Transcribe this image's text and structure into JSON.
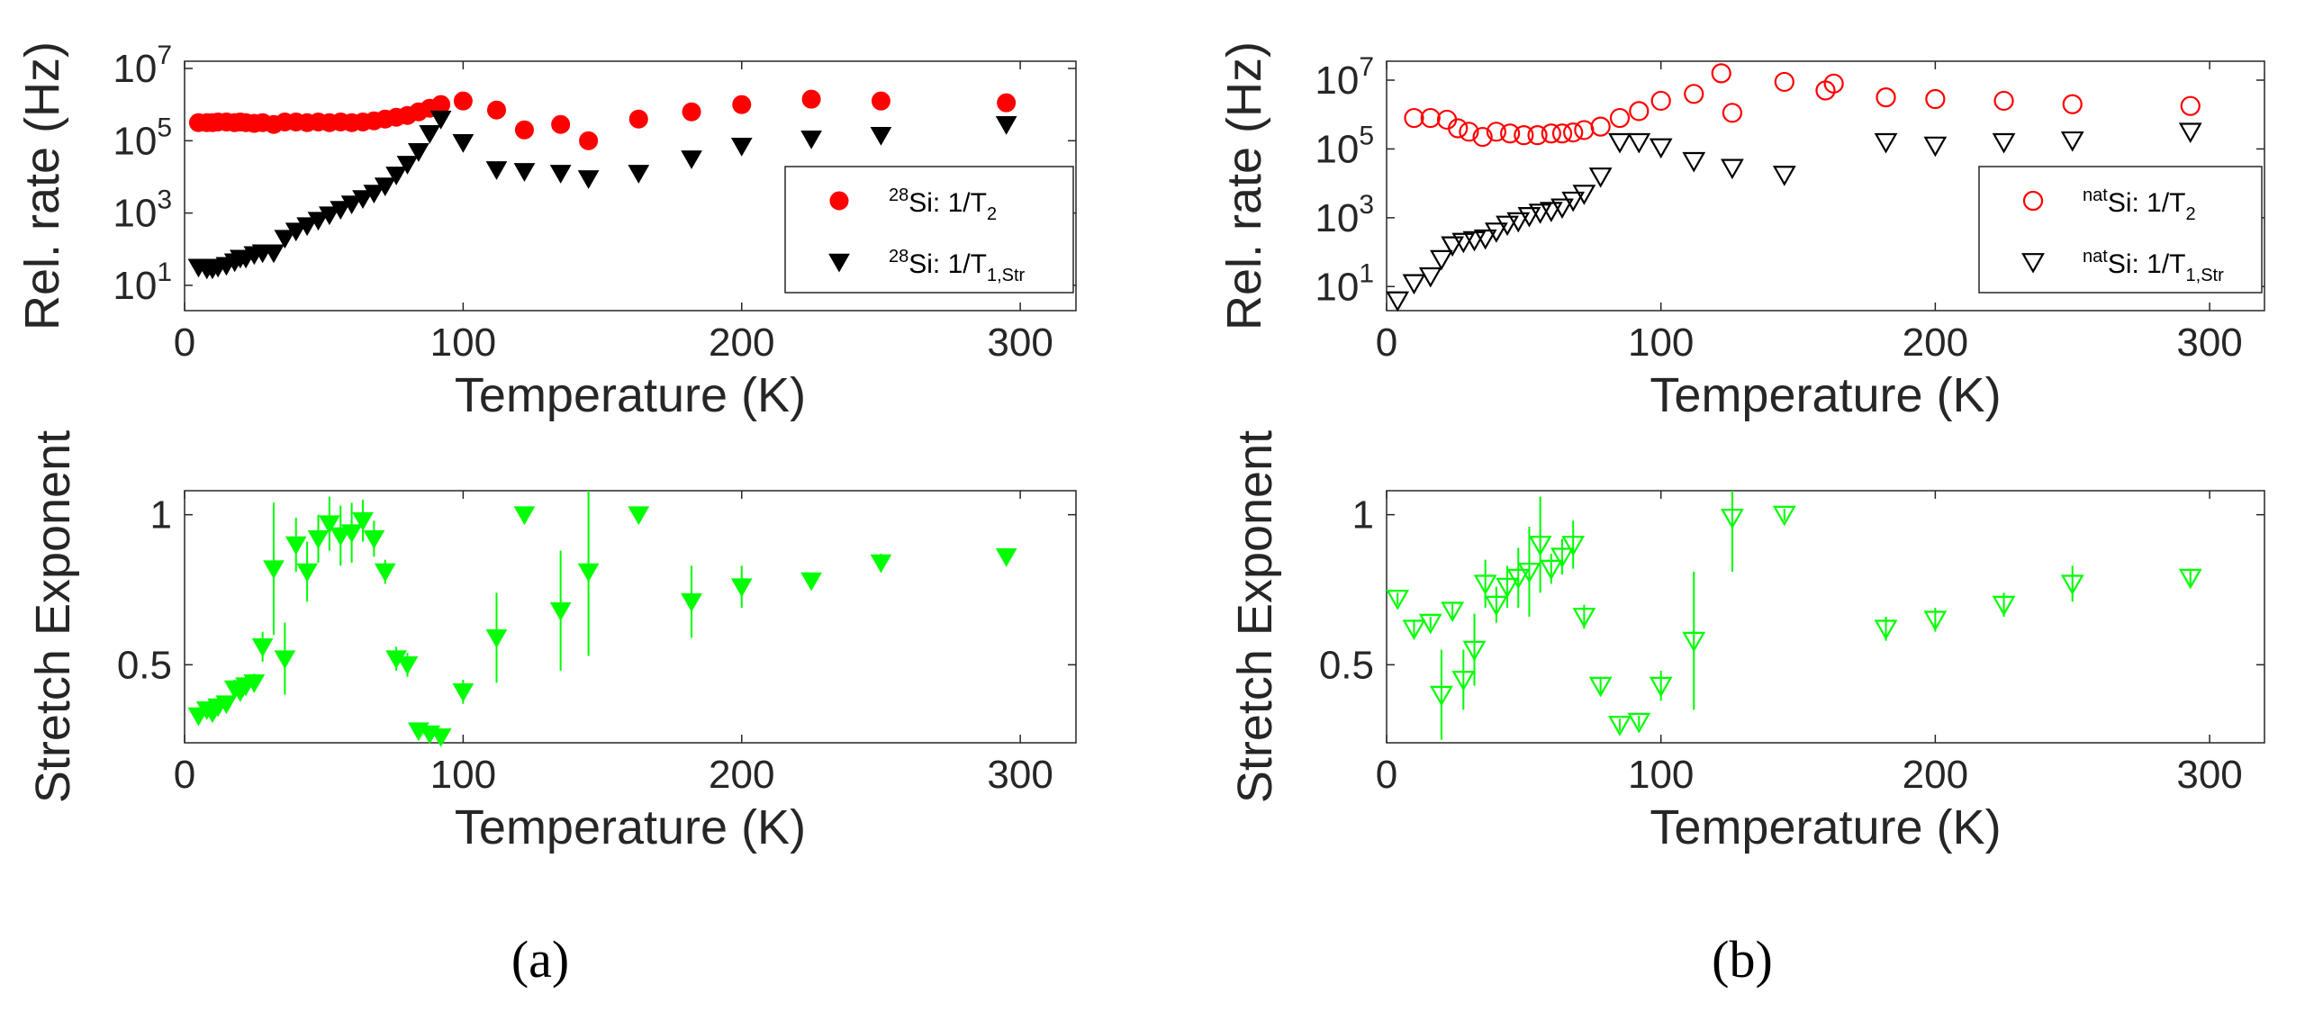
{
  "figure_labels": {
    "a": "(a)",
    "b": "(b)"
  },
  "colors": {
    "t2_red": "#ff0000",
    "t1_black": "#000000",
    "stretch_green": "#00ff00",
    "axis": "#262626"
  },
  "chart_data": [
    {
      "id": "a-top",
      "type": "scatter",
      "panel": "a",
      "xlabel": "Temperature (K)",
      "ylabel": "Rel. rate (Hz)",
      "xlim": [
        0,
        320
      ],
      "ylim_log10": [
        0.3,
        7.2
      ],
      "yscale": "log",
      "xticks": [
        0,
        100,
        200,
        300
      ],
      "yticks": [
        1,
        3,
        5,
        7
      ],
      "legend": "right",
      "series": [
        {
          "name": "t2",
          "label_sup": "28",
          "label_main": "Si: 1/T",
          "label_sub": "2",
          "marker": "circle-filled",
          "color": "#ff0000",
          "x": [
            5,
            8,
            10,
            12,
            15,
            18,
            20,
            22,
            25,
            28,
            32,
            36,
            40,
            44,
            48,
            52,
            56,
            60,
            64,
            68,
            72,
            76,
            80,
            84,
            88,
            92,
            100,
            112,
            122,
            135,
            145,
            163,
            182,
            200,
            225,
            250,
            295
          ],
          "y": [
            5.5,
            5.5,
            5.5,
            5.52,
            5.52,
            5.5,
            5.52,
            5.5,
            5.48,
            5.5,
            5.45,
            5.52,
            5.52,
            5.5,
            5.52,
            5.5,
            5.52,
            5.5,
            5.52,
            5.55,
            5.6,
            5.65,
            5.7,
            5.8,
            5.9,
            6.0,
            6.1,
            5.85,
            5.3,
            5.45,
            5.0,
            5.6,
            5.8,
            6.0,
            6.15,
            6.1,
            6.05
          ]
        },
        {
          "name": "t1",
          "label_sup": "28",
          "label_main": "Si: 1/T",
          "label_sub": "1,Str",
          "marker": "triangle-down-filled",
          "color": "#000000",
          "x": [
            5,
            8,
            10,
            12,
            15,
            18,
            20,
            22,
            25,
            28,
            32,
            36,
            40,
            44,
            48,
            52,
            56,
            60,
            64,
            68,
            72,
            76,
            80,
            84,
            88,
            92,
            100,
            112,
            122,
            135,
            145,
            163,
            182,
            200,
            225,
            250,
            295
          ],
          "y": [
            1.5,
            1.45,
            1.45,
            1.5,
            1.55,
            1.65,
            1.75,
            1.75,
            1.85,
            1.9,
            1.9,
            2.3,
            2.5,
            2.65,
            2.8,
            2.95,
            3.1,
            3.25,
            3.4,
            3.55,
            3.75,
            4.05,
            4.35,
            4.7,
            5.2,
            5.6,
            4.95,
            4.2,
            4.15,
            4.1,
            3.95,
            4.1,
            4.5,
            4.85,
            5.05,
            5.15,
            5.45
          ]
        }
      ]
    },
    {
      "id": "a-bottom",
      "type": "scatter",
      "panel": "a",
      "xlabel": "Temperature (K)",
      "ylabel": "Stretch Exponent",
      "xlim": [
        0,
        320
      ],
      "ylim": [
        0.24,
        1.08
      ],
      "yticks": [
        0.5,
        1
      ],
      "xticks": [
        0,
        100,
        200,
        300
      ],
      "series": [
        {
          "name": "stretch",
          "marker": "triangle-down-filled",
          "color": "#00ff00",
          "x": [
            5,
            8,
            10,
            12,
            15,
            18,
            20,
            22,
            25,
            28,
            32,
            36,
            40,
            44,
            48,
            52,
            56,
            60,
            64,
            68,
            72,
            76,
            80,
            84,
            88,
            92,
            100,
            112,
            122,
            135,
            145,
            163,
            182,
            200,
            225,
            250,
            295
          ],
          "y": [
            0.33,
            0.35,
            0.34,
            0.36,
            0.37,
            0.42,
            0.41,
            0.43,
            0.44,
            0.56,
            0.82,
            0.52,
            0.9,
            0.81,
            0.92,
            0.97,
            0.93,
            0.94,
            0.98,
            0.92,
            0.81,
            0.52,
            0.5,
            0.28,
            0.27,
            0.26,
            0.41,
            0.59,
            1.0,
            0.68,
            0.81,
            1.0,
            0.71,
            0.76,
            0.78,
            0.84,
            0.86
          ],
          "err": [
            0.02,
            0.02,
            0.02,
            0.02,
            0.02,
            0.03,
            0.03,
            0.03,
            0.03,
            0.05,
            0.22,
            0.12,
            0.09,
            0.1,
            0.08,
            0.09,
            0.1,
            0.1,
            0.07,
            0.06,
            0.04,
            0.04,
            0.04,
            0.02,
            0.02,
            0.02,
            0.04,
            0.15,
            0.02,
            0.2,
            0.28,
            0.02,
            0.12,
            0.07,
            0.02,
            0.03,
            0.02
          ]
        }
      ]
    },
    {
      "id": "b-top",
      "type": "scatter",
      "panel": "b",
      "xlabel": "Temperature (K)",
      "ylabel": "Rel. rate (Hz)",
      "xlim": [
        0,
        320
      ],
      "ylim_log10": [
        0.3,
        7.55
      ],
      "yscale": "log",
      "xticks": [
        0,
        100,
        200,
        300
      ],
      "yticks": [
        1,
        3,
        5,
        7
      ],
      "legend": "right",
      "series": [
        {
          "name": "t2",
          "label_sup": "nat",
          "label_main": "Si: 1/T",
          "label_sub": "2",
          "marker": "circle-open",
          "color": "#ff0000",
          "x": [
            10,
            16,
            22,
            26,
            30,
            35,
            40,
            45,
            50,
            55,
            60,
            64,
            68,
            72,
            78,
            85,
            92,
            100,
            112,
            122,
            126,
            145,
            160,
            163,
            182,
            200,
            225,
            250,
            293
          ],
          "y": [
            5.9,
            5.9,
            5.85,
            5.6,
            5.5,
            5.35,
            5.5,
            5.45,
            5.4,
            5.4,
            5.45,
            5.45,
            5.48,
            5.55,
            5.65,
            5.9,
            6.1,
            6.4,
            6.6,
            7.2,
            6.05,
            6.95,
            6.7,
            6.9,
            6.5,
            6.45,
            6.4,
            6.3,
            6.25
          ]
        },
        {
          "name": "t1",
          "label_sup": "nat",
          "label_main": "Si: 1/T",
          "label_sub": "1,Str",
          "marker": "triangle-down-open",
          "color": "#000000",
          "x": [
            4,
            10,
            16,
            20,
            24,
            28,
            32,
            36,
            40,
            44,
            48,
            52,
            56,
            60,
            64,
            68,
            72,
            78,
            85,
            92,
            100,
            112,
            126,
            145,
            182,
            200,
            225,
            250,
            293
          ],
          "y": [
            0.6,
            1.1,
            1.3,
            1.8,
            2.2,
            2.3,
            2.35,
            2.4,
            2.6,
            2.8,
            2.9,
            3.05,
            3.15,
            3.2,
            3.3,
            3.5,
            3.7,
            4.2,
            5.2,
            5.2,
            5.05,
            4.65,
            4.45,
            4.25,
            5.2,
            5.1,
            5.2,
            5.25,
            5.5
          ]
        }
      ]
    },
    {
      "id": "b-bottom",
      "type": "scatter",
      "panel": "b",
      "xlabel": "Temperature (K)",
      "ylabel": "Stretch Exponent",
      "xlim": [
        0,
        320
      ],
      "ylim": [
        0.24,
        1.08
      ],
      "yticks": [
        0.5,
        1
      ],
      "xticks": [
        0,
        100,
        200,
        300
      ],
      "series": [
        {
          "name": "stretch",
          "marker": "triangle-down-open",
          "color": "#00ff00",
          "x": [
            4,
            10,
            16,
            20,
            24,
            28,
            32,
            36,
            40,
            44,
            48,
            52,
            56,
            60,
            64,
            68,
            72,
            78,
            85,
            92,
            100,
            112,
            126,
            145,
            182,
            200,
            225,
            250,
            293
          ],
          "y": [
            0.72,
            0.62,
            0.64,
            0.4,
            0.68,
            0.45,
            0.55,
            0.77,
            0.7,
            0.76,
            0.79,
            0.81,
            0.9,
            0.82,
            0.86,
            0.9,
            0.66,
            0.43,
            0.3,
            0.31,
            0.43,
            0.58,
            0.99,
            1.0,
            0.62,
            0.65,
            0.7,
            0.77,
            0.79
          ],
          "err": [
            0.02,
            0.03,
            0.02,
            0.15,
            0.03,
            0.1,
            0.12,
            0.08,
            0.06,
            0.07,
            0.1,
            0.15,
            0.16,
            0.05,
            0.06,
            0.08,
            0.04,
            0.03,
            0.02,
            0.02,
            0.05,
            0.23,
            0.18,
            0.02,
            0.04,
            0.04,
            0.04,
            0.06,
            0.03
          ]
        }
      ]
    }
  ]
}
